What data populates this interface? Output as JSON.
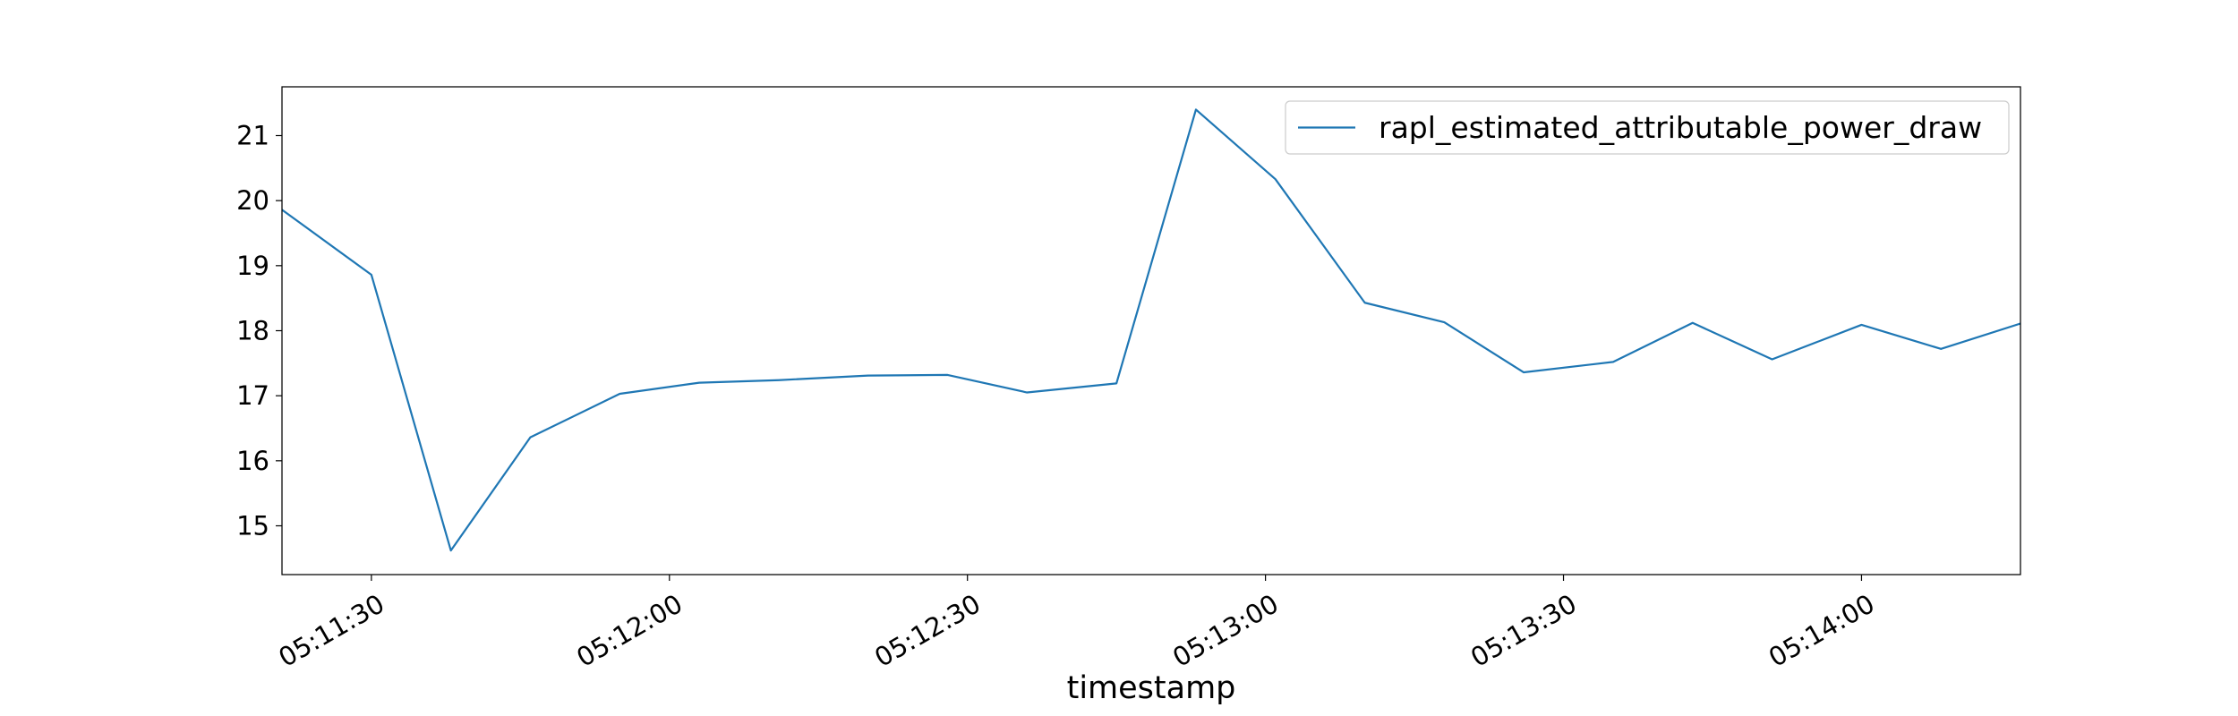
{
  "chart_data": {
    "type": "line",
    "xlabel": "timestamp",
    "ylabel": "",
    "x_unit": "time",
    "xlim": [
      "05:11:21",
      "05:14:16"
    ],
    "ylim": [
      14.25,
      21.75
    ],
    "x_ticks": [
      "05:11:30",
      "05:12:00",
      "05:12:30",
      "05:13:00",
      "05:13:30",
      "05:14:00"
    ],
    "y_ticks": [
      15,
      16,
      17,
      18,
      19,
      20,
      21
    ],
    "legend_position": "top-right",
    "grid": false,
    "series": [
      {
        "name": "rapl_estimated_attributable_power_draw",
        "color": "#1f77b4",
        "points": [
          {
            "x": "05:11:21",
            "y": 19.86
          },
          {
            "x": "05:11:30",
            "y": 18.86
          },
          {
            "x": "05:11:38",
            "y": 14.62
          },
          {
            "x": "05:11:46",
            "y": 16.36
          },
          {
            "x": "05:11:55",
            "y": 17.03
          },
          {
            "x": "05:12:03",
            "y": 17.2
          },
          {
            "x": "05:12:11",
            "y": 17.24
          },
          {
            "x": "05:12:20",
            "y": 17.31
          },
          {
            "x": "05:12:28",
            "y": 17.32
          },
          {
            "x": "05:12:36",
            "y": 17.05
          },
          {
            "x": "05:12:45",
            "y": 17.19
          },
          {
            "x": "05:12:53",
            "y": 21.4
          },
          {
            "x": "05:13:01",
            "y": 20.33
          },
          {
            "x": "05:13:10",
            "y": 18.43
          },
          {
            "x": "05:13:18",
            "y": 18.13
          },
          {
            "x": "05:13:26",
            "y": 17.36
          },
          {
            "x": "05:13:35",
            "y": 17.52
          },
          {
            "x": "05:13:43",
            "y": 18.12
          },
          {
            "x": "05:13:51",
            "y": 17.56
          },
          {
            "x": "05:14:00",
            "y": 18.09
          },
          {
            "x": "05:14:08",
            "y": 17.72
          },
          {
            "x": "05:14:16",
            "y": 18.11
          }
        ]
      }
    ]
  }
}
